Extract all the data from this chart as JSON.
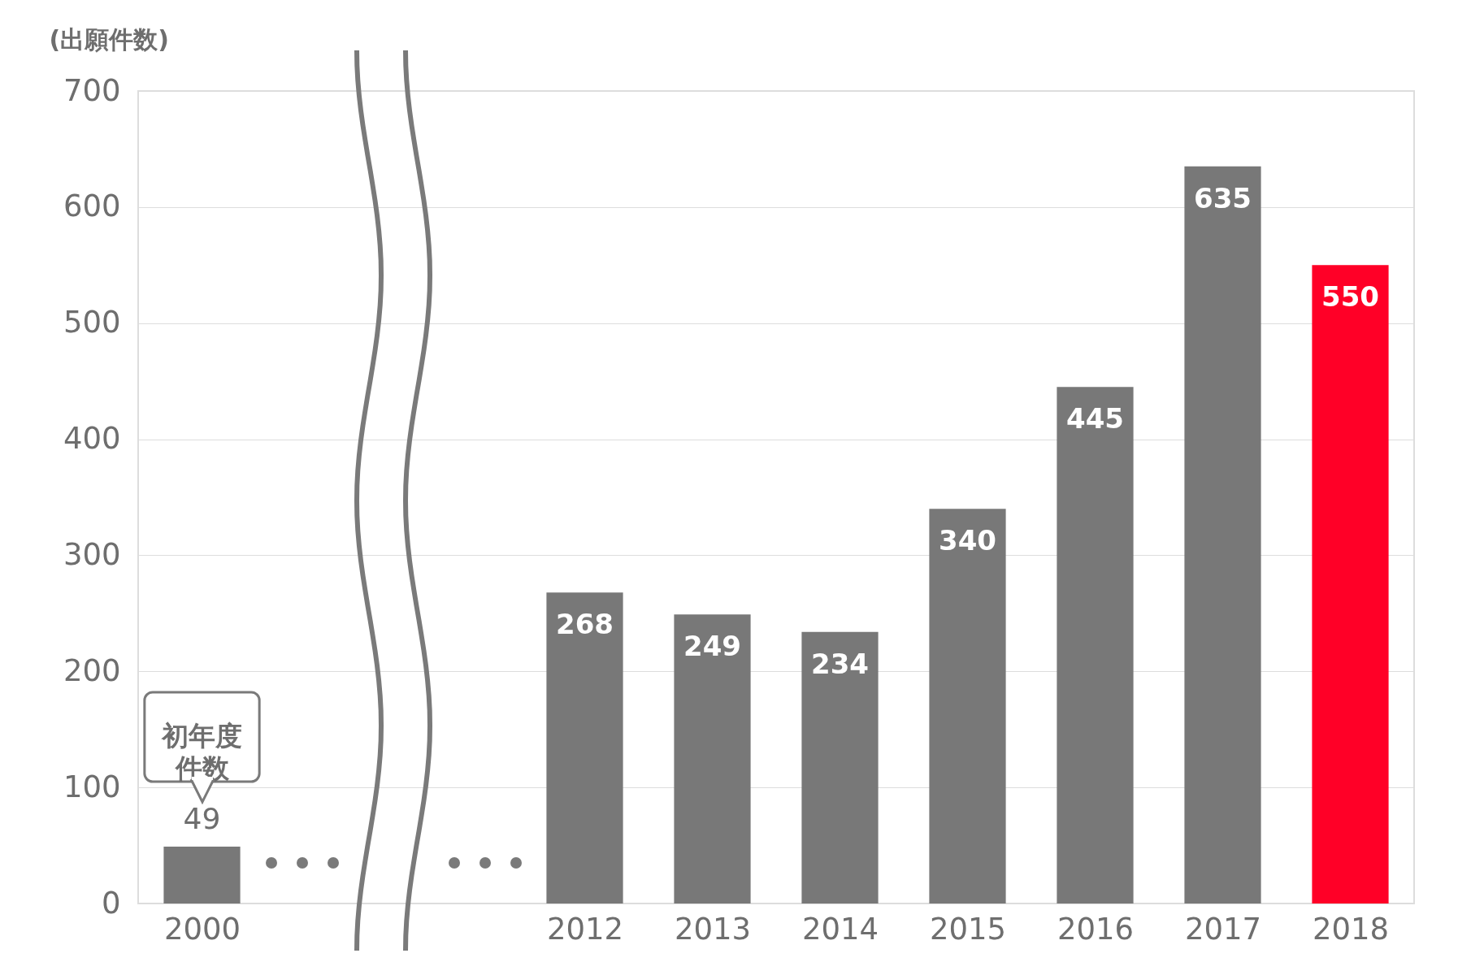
{
  "chart_data": {
    "type": "bar",
    "ylabel": "(出願件数)",
    "categories": [
      "2000",
      null,
      null,
      "2012",
      "2013",
      "2014",
      "2015",
      "2016",
      "2017",
      "2018"
    ],
    "values": [
      49,
      null,
      null,
      268,
      249,
      234,
      340,
      445,
      635,
      550
    ],
    "colors": [
      "#787878",
      null,
      null,
      "#787878",
      "#787878",
      "#787878",
      "#787878",
      "#787878",
      "#787878",
      "#ff0027"
    ],
    "ylim": [
      0,
      700
    ],
    "yticks": [
      0,
      100,
      200,
      300,
      400,
      500,
      600,
      700
    ],
    "grid": "y",
    "data_labels": true,
    "annotations": [
      {
        "text": "初年度件数",
        "x": "2000",
        "y": 49
      }
    ]
  }
}
